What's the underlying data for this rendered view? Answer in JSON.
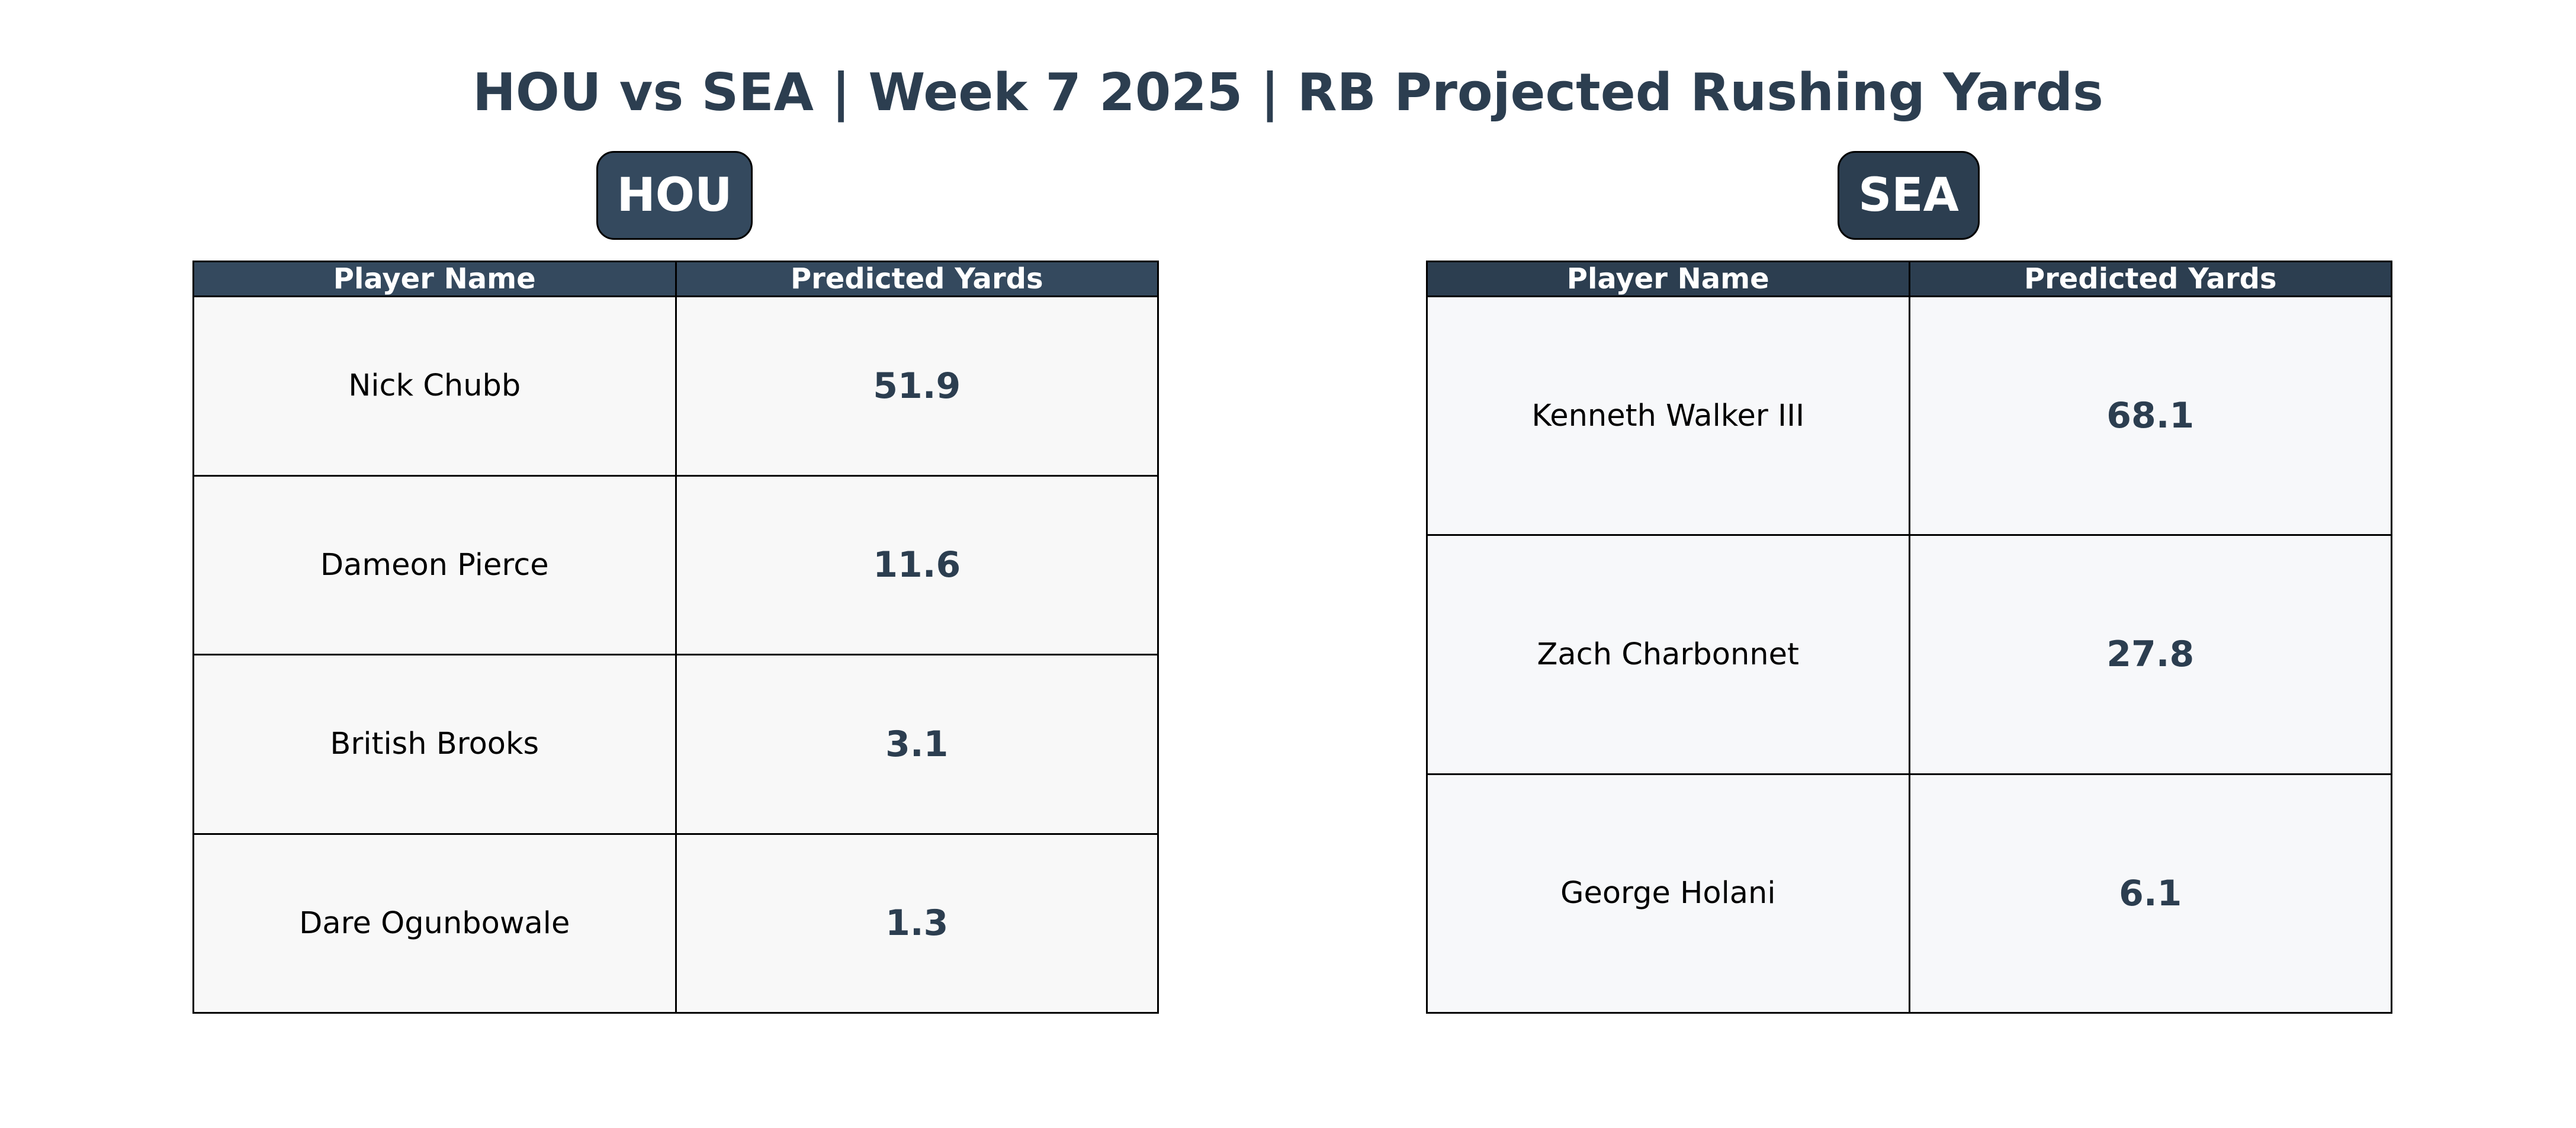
{
  "title": "HOU vs SEA | Week 7 2025 | RB Projected Rushing Yards",
  "colors": {
    "title": "#2c3e50",
    "hou_header": "#34495e",
    "sea_header": "#2c3e50",
    "hou_cell_bg": "#f8f8f8",
    "sea_cell_bg": "#f7f8fa",
    "value_text": "#2c3e50"
  },
  "chart_data": [
    {
      "type": "table",
      "team": "HOU",
      "columns": [
        "Player Name",
        "Predicted Yards"
      ],
      "rows": [
        {
          "player": "Nick Chubb",
          "yards": "51.9"
        },
        {
          "player": "Dameon Pierce",
          "yards": "11.6"
        },
        {
          "player": "British Brooks",
          "yards": "3.1"
        },
        {
          "player": "Dare Ogunbowale",
          "yards": "1.3"
        }
      ]
    },
    {
      "type": "table",
      "team": "SEA",
      "columns": [
        "Player Name",
        "Predicted Yards"
      ],
      "rows": [
        {
          "player": "Kenneth Walker III",
          "yards": "68.1"
        },
        {
          "player": "Zach Charbonnet",
          "yards": "27.8"
        },
        {
          "player": "George Holani",
          "yards": "6.1"
        }
      ]
    }
  ]
}
